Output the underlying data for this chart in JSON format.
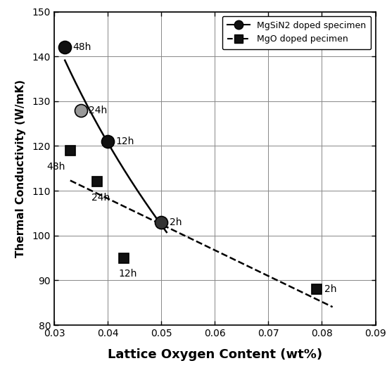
{
  "title": "",
  "xlabel": "Lattice Oxygen Content (wt%)",
  "ylabel": "Thermal Conductivity (W/mK)",
  "xlim": [
    0.03,
    0.09
  ],
  "ylim": [
    80,
    150
  ],
  "xticks": [
    0.03,
    0.04,
    0.05,
    0.06,
    0.07,
    0.08,
    0.09
  ],
  "yticks": [
    80,
    90,
    100,
    110,
    120,
    130,
    140,
    150
  ],
  "circle_data": {
    "x": [
      0.032,
      0.035,
      0.04,
      0.05
    ],
    "y": [
      142,
      128,
      121,
      103
    ],
    "labels": [
      "48h",
      "24h",
      "12h",
      "2h"
    ],
    "facecolors": [
      "#111111",
      "#999999",
      "#111111",
      "#333333"
    ]
  },
  "square_data": {
    "x": [
      0.033,
      0.038,
      0.043,
      0.079
    ],
    "y": [
      119,
      112,
      95,
      88
    ],
    "labels": [
      "48h",
      "24h",
      "12h",
      "2h"
    ]
  },
  "marker_size_circle": 13,
  "marker_size_square": 10,
  "line_color": "#000000",
  "background_color": "#ffffff",
  "legend_labels": [
    "MgSiN2 doped specimen",
    "MgO doped pecimen"
  ],
  "figsize": [
    5.5,
    5.5
  ],
  "dpi": 100
}
